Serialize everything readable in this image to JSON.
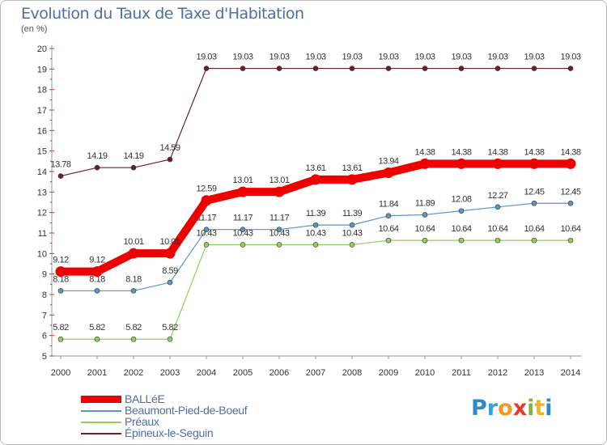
{
  "title": "Evolution du Taux de Taxe d'Habitation",
  "subtitle": "(en %)",
  "chart_data": {
    "type": "line",
    "title": "Evolution du Taux de Taxe d'Habitation",
    "ylabel": "(en %)",
    "xlabel": "",
    "ylim": [
      5,
      20
    ],
    "y_ticks": [
      5,
      6,
      7,
      8,
      9,
      10,
      11,
      12,
      13,
      14,
      15,
      16,
      17,
      18,
      19,
      20
    ],
    "categories": [
      "2000",
      "2001",
      "2002",
      "2003",
      "2004",
      "2005",
      "2006",
      "2007",
      "2008",
      "2009",
      "2010",
      "2011",
      "2012",
      "2013",
      "2014"
    ],
    "grid": false,
    "legend_position": "bottom-left",
    "series": [
      {
        "name": "Épineux-le-Seguin",
        "color": "#6b1f2b",
        "values": [
          13.78,
          14.19,
          14.19,
          14.59,
          19.03,
          19.03,
          19.03,
          19.03,
          19.03,
          19.03,
          19.03,
          19.03,
          19.03,
          19.03,
          19.03
        ],
        "labels": [
          "13.78",
          "14.19",
          "14.19",
          "14.59",
          "19.03",
          "19.03",
          "19.03",
          "19.03",
          "19.03",
          "19.03",
          "19.03",
          "19.03",
          "19.03",
          "19.03",
          "19.03"
        ]
      },
      {
        "name": "Beaumont-Pied-de-Boeuf",
        "color": "#5a95c6",
        "values": [
          8.18,
          8.18,
          8.18,
          8.59,
          11.17,
          11.17,
          11.17,
          11.39,
          11.39,
          11.84,
          11.89,
          12.08,
          12.27,
          12.45,
          12.45
        ],
        "labels": [
          "8.18",
          "8.18",
          "8.18",
          "8.59",
          "11.17",
          "11.17",
          "11.17",
          "11.39",
          "11.39",
          "11.84",
          "11.89",
          "12.08",
          "12.27",
          "12.45",
          "12.45"
        ]
      },
      {
        "name": "Préaux",
        "color": "#8fd15a",
        "values": [
          5.82,
          5.82,
          5.82,
          5.82,
          10.43,
          10.43,
          10.43,
          10.43,
          10.43,
          10.64,
          10.64,
          10.64,
          10.64,
          10.64,
          10.64
        ],
        "labels": [
          "5.82",
          "5.82",
          "5.82",
          "5.82",
          "10.43",
          "10.43",
          "10.43",
          "10.43",
          "10.43",
          "10.64",
          "10.64",
          "10.64",
          "10.64",
          "10.64",
          "10.64"
        ]
      },
      {
        "name": "BALLéE",
        "color": "#ee0000",
        "values": [
          9.12,
          9.12,
          10.01,
          10.01,
          12.59,
          13.01,
          13.01,
          13.61,
          13.61,
          13.94,
          14.38,
          14.38,
          14.38,
          14.38,
          14.38
        ],
        "labels": [
          "9.12",
          "9.12",
          "10.01",
          "10.01",
          "12.59",
          "13.01",
          "13.01",
          "13.61",
          "13.61",
          "13.94",
          "14.38",
          "14.38",
          "14.38",
          "14.38",
          "14.38"
        ]
      }
    ]
  },
  "legend": [
    {
      "label": "BALLéE",
      "color": "#ee0000",
      "style": "thick"
    },
    {
      "label": "Beaumont-Pied-de-Boeuf",
      "color": "#5a95c6",
      "style": "thin"
    },
    {
      "label": "Préaux",
      "color": "#8fd15a",
      "style": "thin"
    },
    {
      "label": "Épineux-le-Seguin",
      "color": "#6b1f2b",
      "style": "thin"
    }
  ],
  "logo": {
    "letters": [
      "P",
      "r",
      "o",
      "x",
      "i",
      "t",
      "i"
    ],
    "colors": [
      "#2f88c8",
      "#3aa0d8",
      "#f39a1b",
      "#e83a2c",
      "#7ab83a",
      "#f0b41c",
      "#2f88c8"
    ]
  }
}
